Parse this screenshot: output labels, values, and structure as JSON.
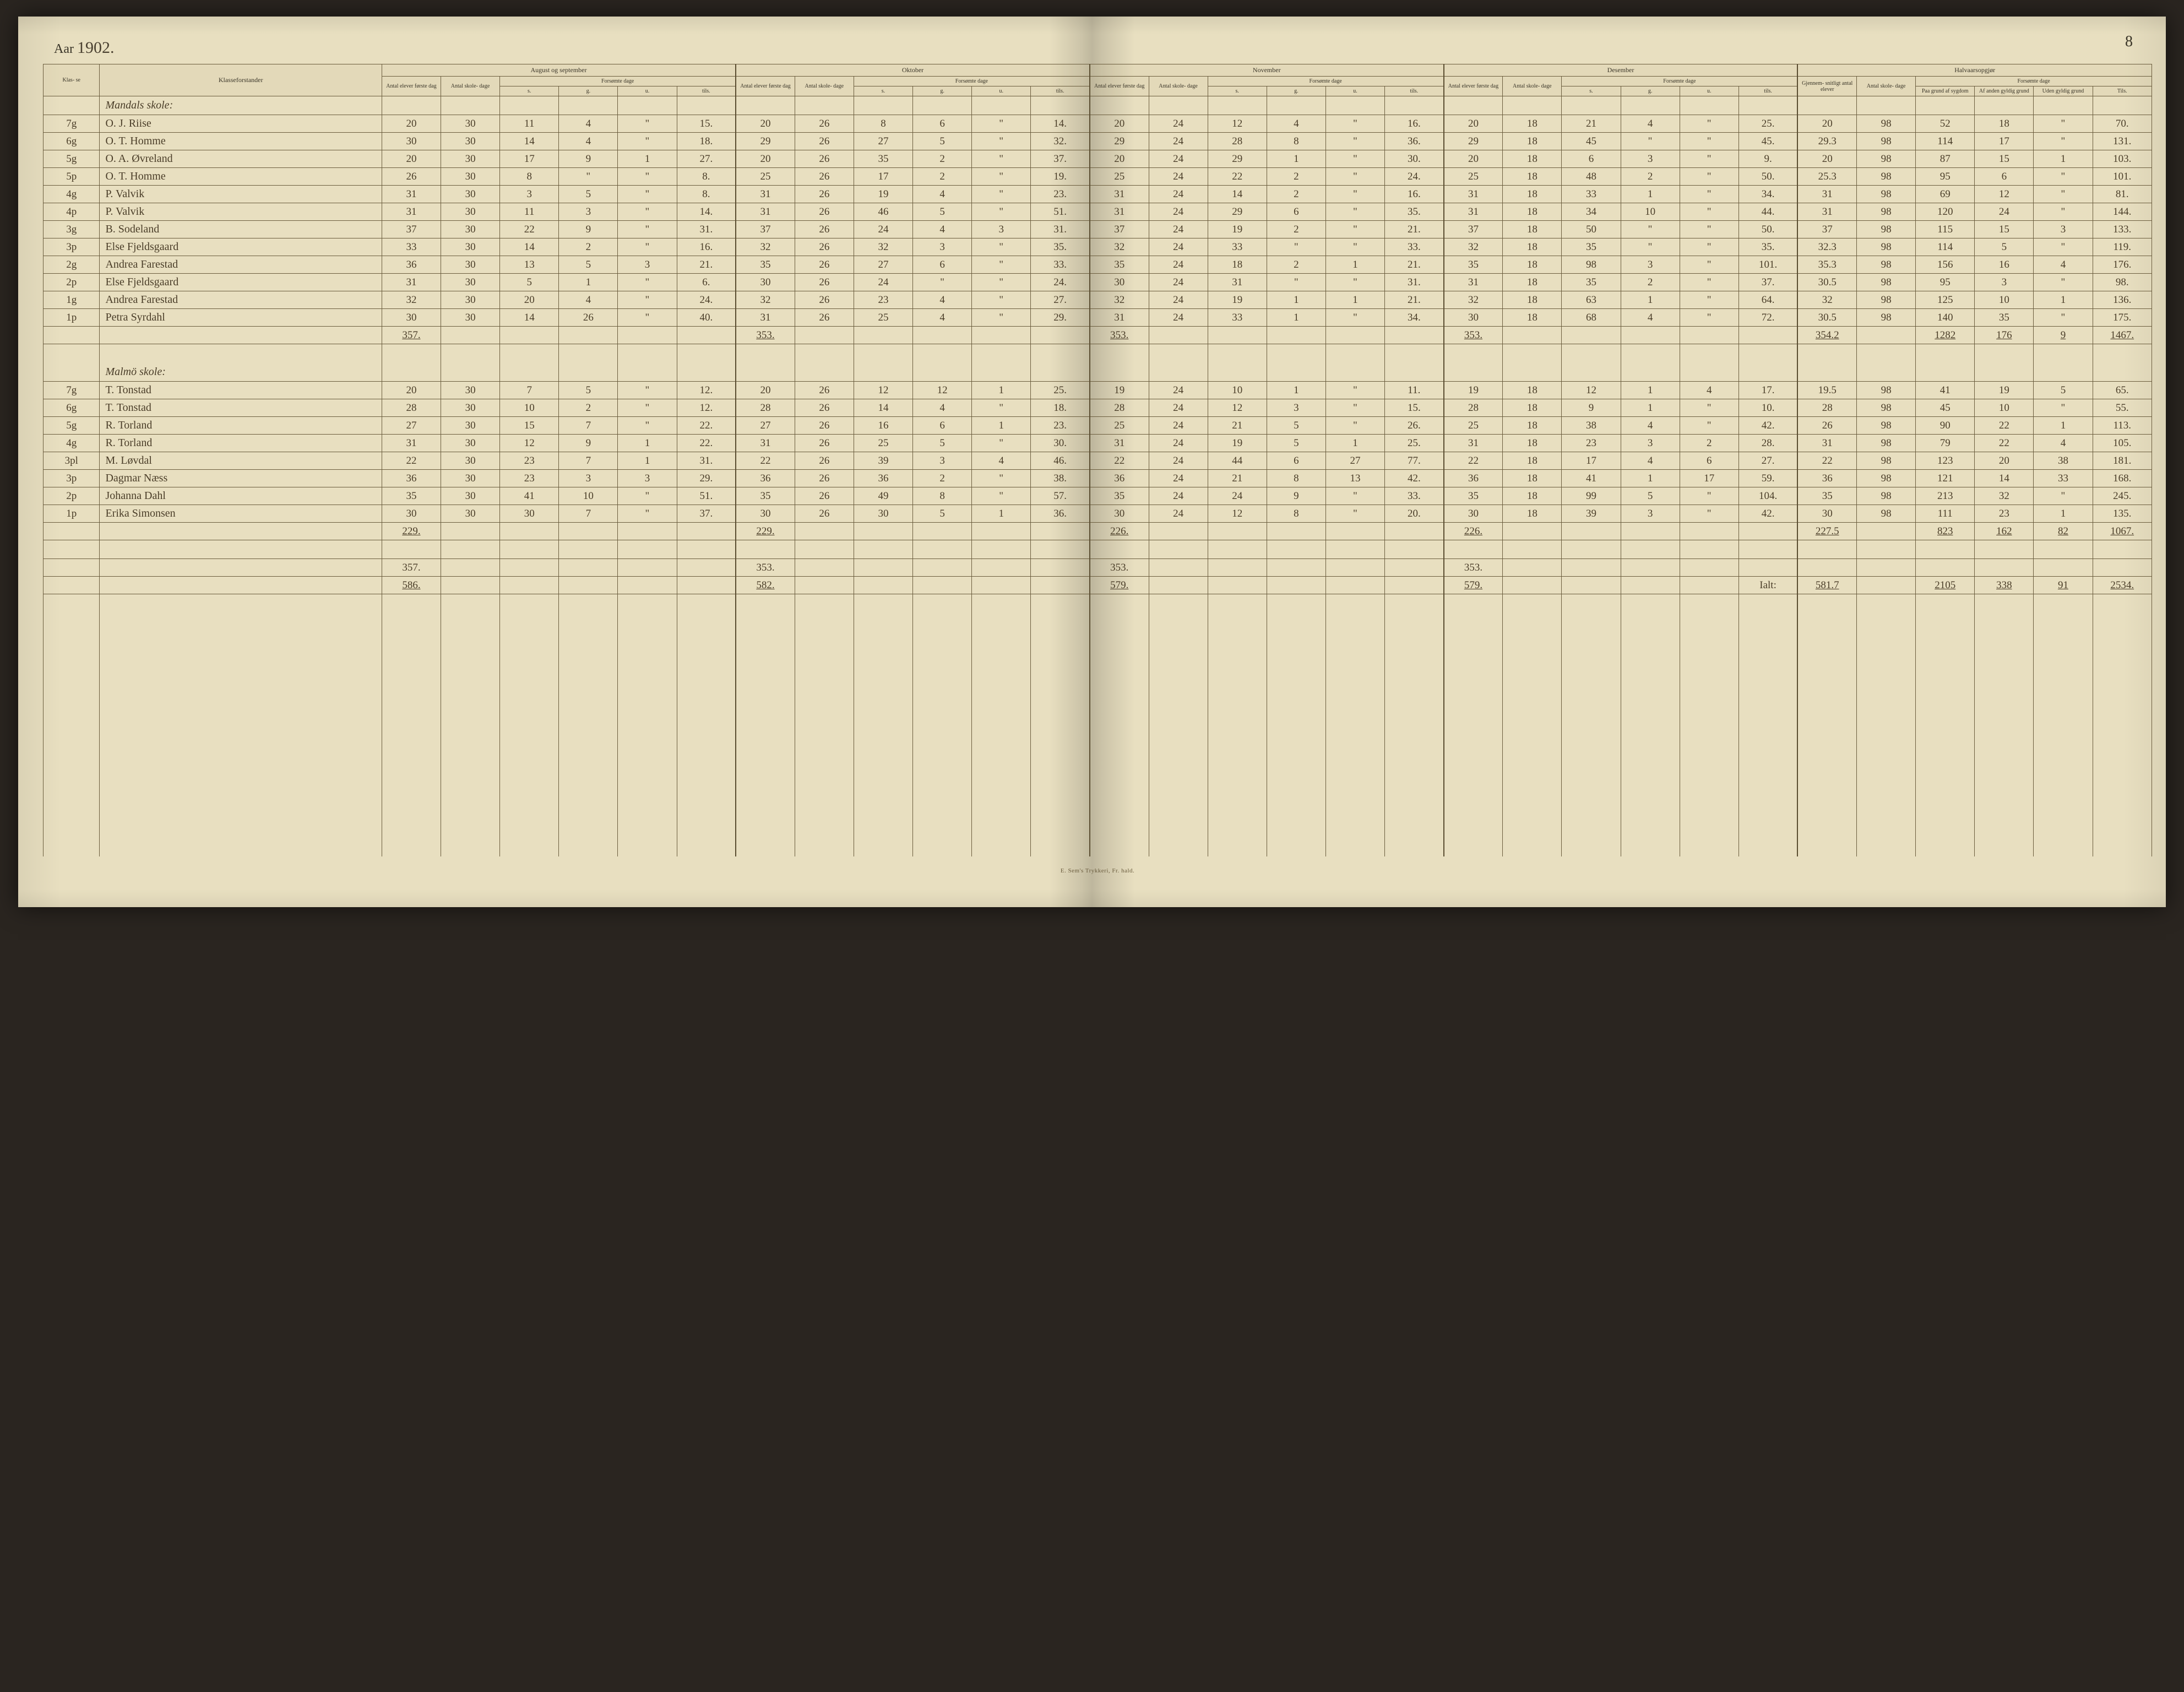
{
  "page_number": "8",
  "year_label": "Aar",
  "year_value": "1902.",
  "footer_text": "E. Sem's Trykkeri, Fr. hald.",
  "columns": {
    "klasse": "Klas-\nse",
    "forstander": "Klasseforstander",
    "months": [
      "August og september",
      "Oktober",
      "November",
      "Desember",
      "Halvaarsopgjør"
    ],
    "antal_elever": "Antal\nelever\nførste\ndag",
    "antal_skole": "Antal\nskole-\ndage",
    "forsomte": "Forsømte dage",
    "sub_forsomte": [
      "s.",
      "g.",
      "u.",
      "tils."
    ],
    "halvaar_elever": "Gjennem-\nsnitligt\nantal\nelever",
    "halvaar_skole": "Antal\nskole-\ndage",
    "halvaar_sub": [
      "Paa\ngrund af\nsygdom",
      "Af anden\ngyldig\ngrund",
      "Uden\ngyldig\ngrund",
      "Tils."
    ]
  },
  "sections": [
    {
      "title": "Mandals skole:",
      "rows": [
        {
          "k": "7g",
          "name": "O. J. Riise",
          "aug": [
            "20",
            "30",
            "11",
            "4",
            "\"",
            "15."
          ],
          "okt": [
            "20",
            "26",
            "8",
            "6",
            "\"",
            "14."
          ],
          "nov": [
            "20",
            "24",
            "12",
            "4",
            "\"",
            "16."
          ],
          "des": [
            "20",
            "18",
            "21",
            "4",
            "\"",
            "25."
          ],
          "half": [
            "20",
            "98",
            "52",
            "18",
            "\"",
            "70."
          ]
        },
        {
          "k": "6g",
          "name": "O. T. Homme",
          "aug": [
            "30",
            "30",
            "14",
            "4",
            "\"",
            "18."
          ],
          "okt": [
            "29",
            "26",
            "27",
            "5",
            "\"",
            "32."
          ],
          "nov": [
            "29",
            "24",
            "28",
            "8",
            "\"",
            "36."
          ],
          "des": [
            "29",
            "18",
            "45",
            "\"",
            "\"",
            "45."
          ],
          "half": [
            "29.3",
            "98",
            "114",
            "17",
            "\"",
            "131."
          ]
        },
        {
          "k": "5g",
          "name": "O. A. Øvreland",
          "aug": [
            "20",
            "30",
            "17",
            "9",
            "1",
            "27."
          ],
          "okt": [
            "20",
            "26",
            "35",
            "2",
            "\"",
            "37."
          ],
          "nov": [
            "20",
            "24",
            "29",
            "1",
            "\"",
            "30."
          ],
          "des": [
            "20",
            "18",
            "6",
            "3",
            "\"",
            "9."
          ],
          "half": [
            "20",
            "98",
            "87",
            "15",
            "1",
            "103."
          ]
        },
        {
          "k": "5p",
          "name": "O. T. Homme",
          "aug": [
            "26",
            "30",
            "8",
            "\"",
            "\"",
            "8."
          ],
          "okt": [
            "25",
            "26",
            "17",
            "2",
            "\"",
            "19."
          ],
          "nov": [
            "25",
            "24",
            "22",
            "2",
            "\"",
            "24."
          ],
          "des": [
            "25",
            "18",
            "48",
            "2",
            "\"",
            "50."
          ],
          "half": [
            "25.3",
            "98",
            "95",
            "6",
            "\"",
            "101."
          ]
        },
        {
          "k": "4g",
          "name": "P. Valvik",
          "aug": [
            "31",
            "30",
            "3",
            "5",
            "\"",
            "8."
          ],
          "okt": [
            "31",
            "26",
            "19",
            "4",
            "\"",
            "23."
          ],
          "nov": [
            "31",
            "24",
            "14",
            "2",
            "\"",
            "16."
          ],
          "des": [
            "31",
            "18",
            "33",
            "1",
            "\"",
            "34."
          ],
          "half": [
            "31",
            "98",
            "69",
            "12",
            "\"",
            "81."
          ]
        },
        {
          "k": "4p",
          "name": "P. Valvik",
          "aug": [
            "31",
            "30",
            "11",
            "3",
            "\"",
            "14."
          ],
          "okt": [
            "31",
            "26",
            "46",
            "5",
            "\"",
            "51."
          ],
          "nov": [
            "31",
            "24",
            "29",
            "6",
            "\"",
            "35."
          ],
          "des": [
            "31",
            "18",
            "34",
            "10",
            "\"",
            "44."
          ],
          "half": [
            "31",
            "98",
            "120",
            "24",
            "\"",
            "144."
          ]
        },
        {
          "k": "3g",
          "name": "B. Sodeland",
          "aug": [
            "37",
            "30",
            "22",
            "9",
            "\"",
            "31."
          ],
          "okt": [
            "37",
            "26",
            "24",
            "4",
            "3",
            "31."
          ],
          "nov": [
            "37",
            "24",
            "19",
            "2",
            "\"",
            "21."
          ],
          "des": [
            "37",
            "18",
            "50",
            "\"",
            "\"",
            "50."
          ],
          "half": [
            "37",
            "98",
            "115",
            "15",
            "3",
            "133."
          ]
        },
        {
          "k": "3p",
          "name": "Else Fjeldsgaard",
          "aug": [
            "33",
            "30",
            "14",
            "2",
            "\"",
            "16."
          ],
          "okt": [
            "32",
            "26",
            "32",
            "3",
            "\"",
            "35."
          ],
          "nov": [
            "32",
            "24",
            "33",
            "\"",
            "\"",
            "33."
          ],
          "des": [
            "32",
            "18",
            "35",
            "\"",
            "\"",
            "35."
          ],
          "half": [
            "32.3",
            "98",
            "114",
            "5",
            "\"",
            "119."
          ]
        },
        {
          "k": "2g",
          "name": "Andrea Farestad",
          "aug": [
            "36",
            "30",
            "13",
            "5",
            "3",
            "21."
          ],
          "okt": [
            "35",
            "26",
            "27",
            "6",
            "\"",
            "33."
          ],
          "nov": [
            "35",
            "24",
            "18",
            "2",
            "1",
            "21."
          ],
          "des": [
            "35",
            "18",
            "98",
            "3",
            "\"",
            "101."
          ],
          "half": [
            "35.3",
            "98",
            "156",
            "16",
            "4",
            "176."
          ]
        },
        {
          "k": "2p",
          "name": "Else Fjeldsgaard",
          "aug": [
            "31",
            "30",
            "5",
            "1",
            "\"",
            "6."
          ],
          "okt": [
            "30",
            "26",
            "24",
            "\"",
            "\"",
            "24."
          ],
          "nov": [
            "30",
            "24",
            "31",
            "\"",
            "\"",
            "31."
          ],
          "des": [
            "31",
            "18",
            "35",
            "2",
            "\"",
            "37."
          ],
          "half": [
            "30.5",
            "98",
            "95",
            "3",
            "\"",
            "98."
          ]
        },
        {
          "k": "1g",
          "name": "Andrea Farestad",
          "aug": [
            "32",
            "30",
            "20",
            "4",
            "\"",
            "24."
          ],
          "okt": [
            "32",
            "26",
            "23",
            "4",
            "\"",
            "27."
          ],
          "nov": [
            "32",
            "24",
            "19",
            "1",
            "1",
            "21."
          ],
          "des": [
            "32",
            "18",
            "63",
            "1",
            "\"",
            "64."
          ],
          "half": [
            "32",
            "98",
            "125",
            "10",
            "1",
            "136."
          ]
        },
        {
          "k": "1p",
          "name": "Petra Syrdahl",
          "aug": [
            "30",
            "30",
            "14",
            "26",
            "\"",
            "40."
          ],
          "okt": [
            "31",
            "26",
            "25",
            "4",
            "\"",
            "29."
          ],
          "nov": [
            "31",
            "24",
            "33",
            "1",
            "\"",
            "34."
          ],
          "des": [
            "30",
            "18",
            "68",
            "4",
            "\"",
            "72."
          ],
          "half": [
            "30.5",
            "98",
            "140",
            "35",
            "\"",
            "175."
          ]
        }
      ],
      "totals": {
        "aug_e": "357.",
        "okt_e": "353.",
        "nov_e": "353.",
        "des_e": "353.",
        "half_e": "354.2",
        "half_tils": [
          "1282",
          "176",
          "9",
          "1467."
        ]
      }
    },
    {
      "title": "Malmö skole:",
      "rows": [
        {
          "k": "7g",
          "name": "T. Tonstad",
          "aug": [
            "20",
            "30",
            "7",
            "5",
            "\"",
            "12."
          ],
          "okt": [
            "20",
            "26",
            "12",
            "12",
            "1",
            "25."
          ],
          "nov": [
            "19",
            "24",
            "10",
            "1",
            "\"",
            "11."
          ],
          "des": [
            "19",
            "18",
            "12",
            "1",
            "4",
            "17."
          ],
          "half": [
            "19.5",
            "98",
            "41",
            "19",
            "5",
            "65."
          ]
        },
        {
          "k": "6g",
          "name": "T. Tonstad",
          "aug": [
            "28",
            "30",
            "10",
            "2",
            "\"",
            "12."
          ],
          "okt": [
            "28",
            "26",
            "14",
            "4",
            "\"",
            "18."
          ],
          "nov": [
            "28",
            "24",
            "12",
            "3",
            "\"",
            "15."
          ],
          "des": [
            "28",
            "18",
            "9",
            "1",
            "\"",
            "10."
          ],
          "half": [
            "28",
            "98",
            "45",
            "10",
            "\"",
            "55."
          ]
        },
        {
          "k": "5g",
          "name": "R. Torland",
          "aug": [
            "27",
            "30",
            "15",
            "7",
            "\"",
            "22."
          ],
          "okt": [
            "27",
            "26",
            "16",
            "6",
            "1",
            "23."
          ],
          "nov": [
            "25",
            "24",
            "21",
            "5",
            "\"",
            "26."
          ],
          "des": [
            "25",
            "18",
            "38",
            "4",
            "\"",
            "42."
          ],
          "half": [
            "26",
            "98",
            "90",
            "22",
            "1",
            "113."
          ]
        },
        {
          "k": "4g",
          "name": "R. Torland",
          "aug": [
            "31",
            "30",
            "12",
            "9",
            "1",
            "22."
          ],
          "okt": [
            "31",
            "26",
            "25",
            "5",
            "\"",
            "30."
          ],
          "nov": [
            "31",
            "24",
            "19",
            "5",
            "1",
            "25."
          ],
          "des": [
            "31",
            "18",
            "23",
            "3",
            "2",
            "28."
          ],
          "half": [
            "31",
            "98",
            "79",
            "22",
            "4",
            "105."
          ]
        },
        {
          "k": "3pl",
          "name": "M. Løvdal",
          "aug": [
            "22",
            "30",
            "23",
            "7",
            "1",
            "31."
          ],
          "okt": [
            "22",
            "26",
            "39",
            "3",
            "4",
            "46."
          ],
          "nov": [
            "22",
            "24",
            "44",
            "6",
            "27",
            "77."
          ],
          "des": [
            "22",
            "18",
            "17",
            "4",
            "6",
            "27."
          ],
          "half": [
            "22",
            "98",
            "123",
            "20",
            "38",
            "181."
          ]
        },
        {
          "k": "3p",
          "name": "Dagmar Næss",
          "aug": [
            "36",
            "30",
            "23",
            "3",
            "3",
            "29."
          ],
          "okt": [
            "36",
            "26",
            "36",
            "2",
            "\"",
            "38."
          ],
          "nov": [
            "36",
            "24",
            "21",
            "8",
            "13",
            "42."
          ],
          "des": [
            "36",
            "18",
            "41",
            "1",
            "17",
            "59."
          ],
          "half": [
            "36",
            "98",
            "121",
            "14",
            "33",
            "168."
          ]
        },
        {
          "k": "2p",
          "name": "Johanna Dahl",
          "aug": [
            "35",
            "30",
            "41",
            "10",
            "\"",
            "51."
          ],
          "okt": [
            "35",
            "26",
            "49",
            "8",
            "\"",
            "57."
          ],
          "nov": [
            "35",
            "24",
            "24",
            "9",
            "\"",
            "33."
          ],
          "des": [
            "35",
            "18",
            "99",
            "5",
            "\"",
            "104."
          ],
          "half": [
            "35",
            "98",
            "213",
            "32",
            "\"",
            "245."
          ]
        },
        {
          "k": "1p",
          "name": "Erika Simonsen",
          "aug": [
            "30",
            "30",
            "30",
            "7",
            "\"",
            "37."
          ],
          "okt": [
            "30",
            "26",
            "30",
            "5",
            "1",
            "36."
          ],
          "nov": [
            "30",
            "24",
            "12",
            "8",
            "\"",
            "20."
          ],
          "des": [
            "30",
            "18",
            "39",
            "3",
            "\"",
            "42."
          ],
          "half": [
            "30",
            "98",
            "111",
            "23",
            "1",
            "135."
          ]
        }
      ],
      "totals": {
        "aug_e": "229.",
        "okt_e": "229.",
        "nov_e": "226.",
        "des_e": "226.",
        "half_e": "227.5",
        "half_tils": [
          "823",
          "162",
          "82",
          "1067."
        ]
      }
    }
  ],
  "grand_totals": {
    "aug_sum2": "357.",
    "okt_sum2": "353.",
    "nov_sum2": "353.",
    "des_sum2": "353.",
    "aug_grand": "586.",
    "okt_grand": "582.",
    "nov_grand": "579.",
    "des_grand": "579.",
    "ialt_label": "Ialt:",
    "ialt_elever": "581.7",
    "grand_tils": [
      "2105",
      "338",
      "91",
      "2534."
    ]
  }
}
